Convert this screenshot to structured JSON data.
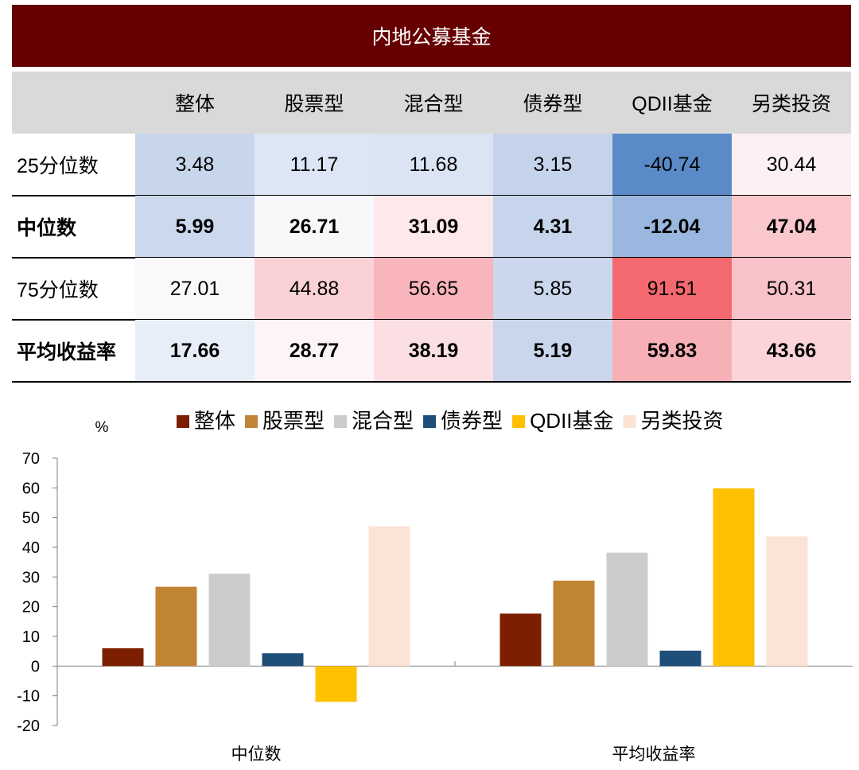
{
  "table": {
    "title": "内地公募基金",
    "columns": [
      "整体",
      "股票型",
      "混合型",
      "债券型",
      "QDII基金",
      "另类投资"
    ],
    "rows": [
      {
        "label": "25分位数",
        "bold": false,
        "values": [
          "3.48",
          "11.17",
          "11.68",
          "3.15",
          "-40.74",
          "30.44"
        ],
        "colors": [
          "#c8d6ec",
          "#dce6f4",
          "#dbe4f2",
          "#c6d4eb",
          "#5b8ac8",
          "#fdf0f2"
        ]
      },
      {
        "label": "中位数",
        "bold": true,
        "values": [
          "5.99",
          "26.71",
          "31.09",
          "4.31",
          "-12.04",
          "47.04"
        ],
        "colors": [
          "#cbd8ed",
          "#faf7fb",
          "#fde8eb",
          "#c7d5ec",
          "#9ab7df",
          "#f9c7cc"
        ]
      },
      {
        "label": "75分位数",
        "bold": false,
        "values": [
          "27.01",
          "44.88",
          "56.65",
          "5.85",
          "91.51",
          "50.31"
        ],
        "colors": [
          "#fbf8fb",
          "#fad1d5",
          "#f8b5bb",
          "#cad7ec",
          "#f4696f",
          "#f8c3c8"
        ]
      },
      {
        "label": "平均收益率",
        "bold": true,
        "values": [
          "17.66",
          "28.77",
          "38.19",
          "5.19",
          "59.83",
          "43.66"
        ],
        "colors": [
          "#e8eef8",
          "#fcf4f7",
          "#fcdfe3",
          "#c9d6ec",
          "#f7b0b6",
          "#fad4d8"
        ]
      }
    ]
  },
  "chart_data": {
    "type": "bar",
    "ylabel": "%",
    "ylim": [
      -20,
      70
    ],
    "yticks": [
      70,
      60,
      50,
      40,
      30,
      20,
      10,
      0,
      -10,
      -20
    ],
    "categories": [
      "中位数",
      "平均收益率"
    ],
    "series": [
      {
        "name": "整体",
        "color": "#7b1f00",
        "values": [
          5.99,
          17.66
        ]
      },
      {
        "name": "股票型",
        "color": "#c18434",
        "values": [
          26.71,
          28.77
        ]
      },
      {
        "name": "混合型",
        "color": "#cccccc",
        "values": [
          31.09,
          38.19
        ]
      },
      {
        "name": "债券型",
        "color": "#1f4e79",
        "values": [
          4.31,
          5.19
        ]
      },
      {
        "name": "QDII基金",
        "color": "#ffc000",
        "values": [
          -12.04,
          59.83
        ]
      },
      {
        "name": "另类投资",
        "color": "#fbe3d6",
        "values": [
          47.04,
          43.66
        ]
      }
    ]
  }
}
